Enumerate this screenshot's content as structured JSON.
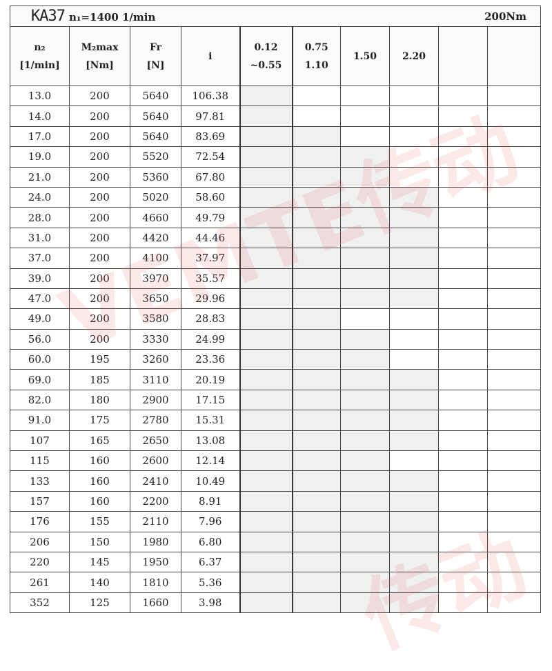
{
  "title": {
    "model": "KA37",
    "input_speed": "n₁=1400 1/min",
    "torque": "200Nm"
  },
  "headers": [
    {
      "line1": "n₂",
      "line2": "[1/min]"
    },
    {
      "line1": "M₂max",
      "line2": "[Nm]"
    },
    {
      "line1": "Fr",
      "line2": "[N]"
    },
    {
      "line1": "i",
      "line2": ""
    },
    {
      "line1": "0.12",
      "line2": "~0.55"
    },
    {
      "line1": "0.75",
      "line2": "1.10"
    },
    {
      "line1": "1.50",
      "line2": ""
    },
    {
      "line1": "2.20",
      "line2": ""
    },
    {
      "line1": "",
      "line2": ""
    },
    {
      "line1": "",
      "line2": ""
    }
  ],
  "rows": [
    [
      "13.0",
      "200",
      "5640",
      "106.38"
    ],
    [
      "14.0",
      "200",
      "5640",
      "97.81"
    ],
    [
      "17.0",
      "200",
      "5640",
      "83.69"
    ],
    [
      "19.0",
      "200",
      "5520",
      "72.54"
    ],
    [
      "21.0",
      "200",
      "5360",
      "67.80"
    ],
    [
      "24.0",
      "200",
      "5020",
      "58.60"
    ],
    [
      "28.0",
      "200",
      "4660",
      "49.79"
    ],
    [
      "31.0",
      "200",
      "4420",
      "44.46"
    ],
    [
      "37.0",
      "200",
      "4100",
      "37.97"
    ],
    [
      "39.0",
      "200",
      "3970",
      "35.57"
    ],
    [
      "47.0",
      "200",
      "3650",
      "29.96"
    ],
    [
      "49.0",
      "200",
      "3580",
      "28.83"
    ],
    [
      "56.0",
      "200",
      "3330",
      "24.99"
    ],
    [
      "60.0",
      "195",
      "3260",
      "23.36"
    ],
    [
      "69.0",
      "185",
      "3110",
      "20.19"
    ],
    [
      "82.0",
      "180",
      "2900",
      "17.15"
    ],
    [
      "91.0",
      "175",
      "2780",
      "15.31"
    ],
    [
      "107",
      "165",
      "2650",
      "13.08"
    ],
    [
      "115",
      "160",
      "2600",
      "12.14"
    ],
    [
      "133",
      "160",
      "2410",
      "10.49"
    ],
    [
      "157",
      "160",
      "2200",
      "8.91"
    ],
    [
      "176",
      "155",
      "2110",
      "7.96"
    ],
    [
      "206",
      "150",
      "1980",
      "6.80"
    ],
    [
      "220",
      "145",
      "1950",
      "6.37"
    ],
    [
      "261",
      "140",
      "1810",
      "5.36"
    ],
    [
      "352",
      "125",
      "1660",
      "3.98"
    ]
  ],
  "available_power_columns_per_row": [
    1,
    1,
    2,
    3,
    3,
    4,
    4,
    4,
    4,
    4,
    4,
    2,
    3,
    3,
    4,
    4,
    4,
    4,
    3,
    4,
    4,
    4,
    4,
    4,
    4,
    4
  ],
  "colors": {
    "shade": "#eff1f1",
    "watermark": "#f05050"
  },
  "watermark": "VEMTE传动"
}
